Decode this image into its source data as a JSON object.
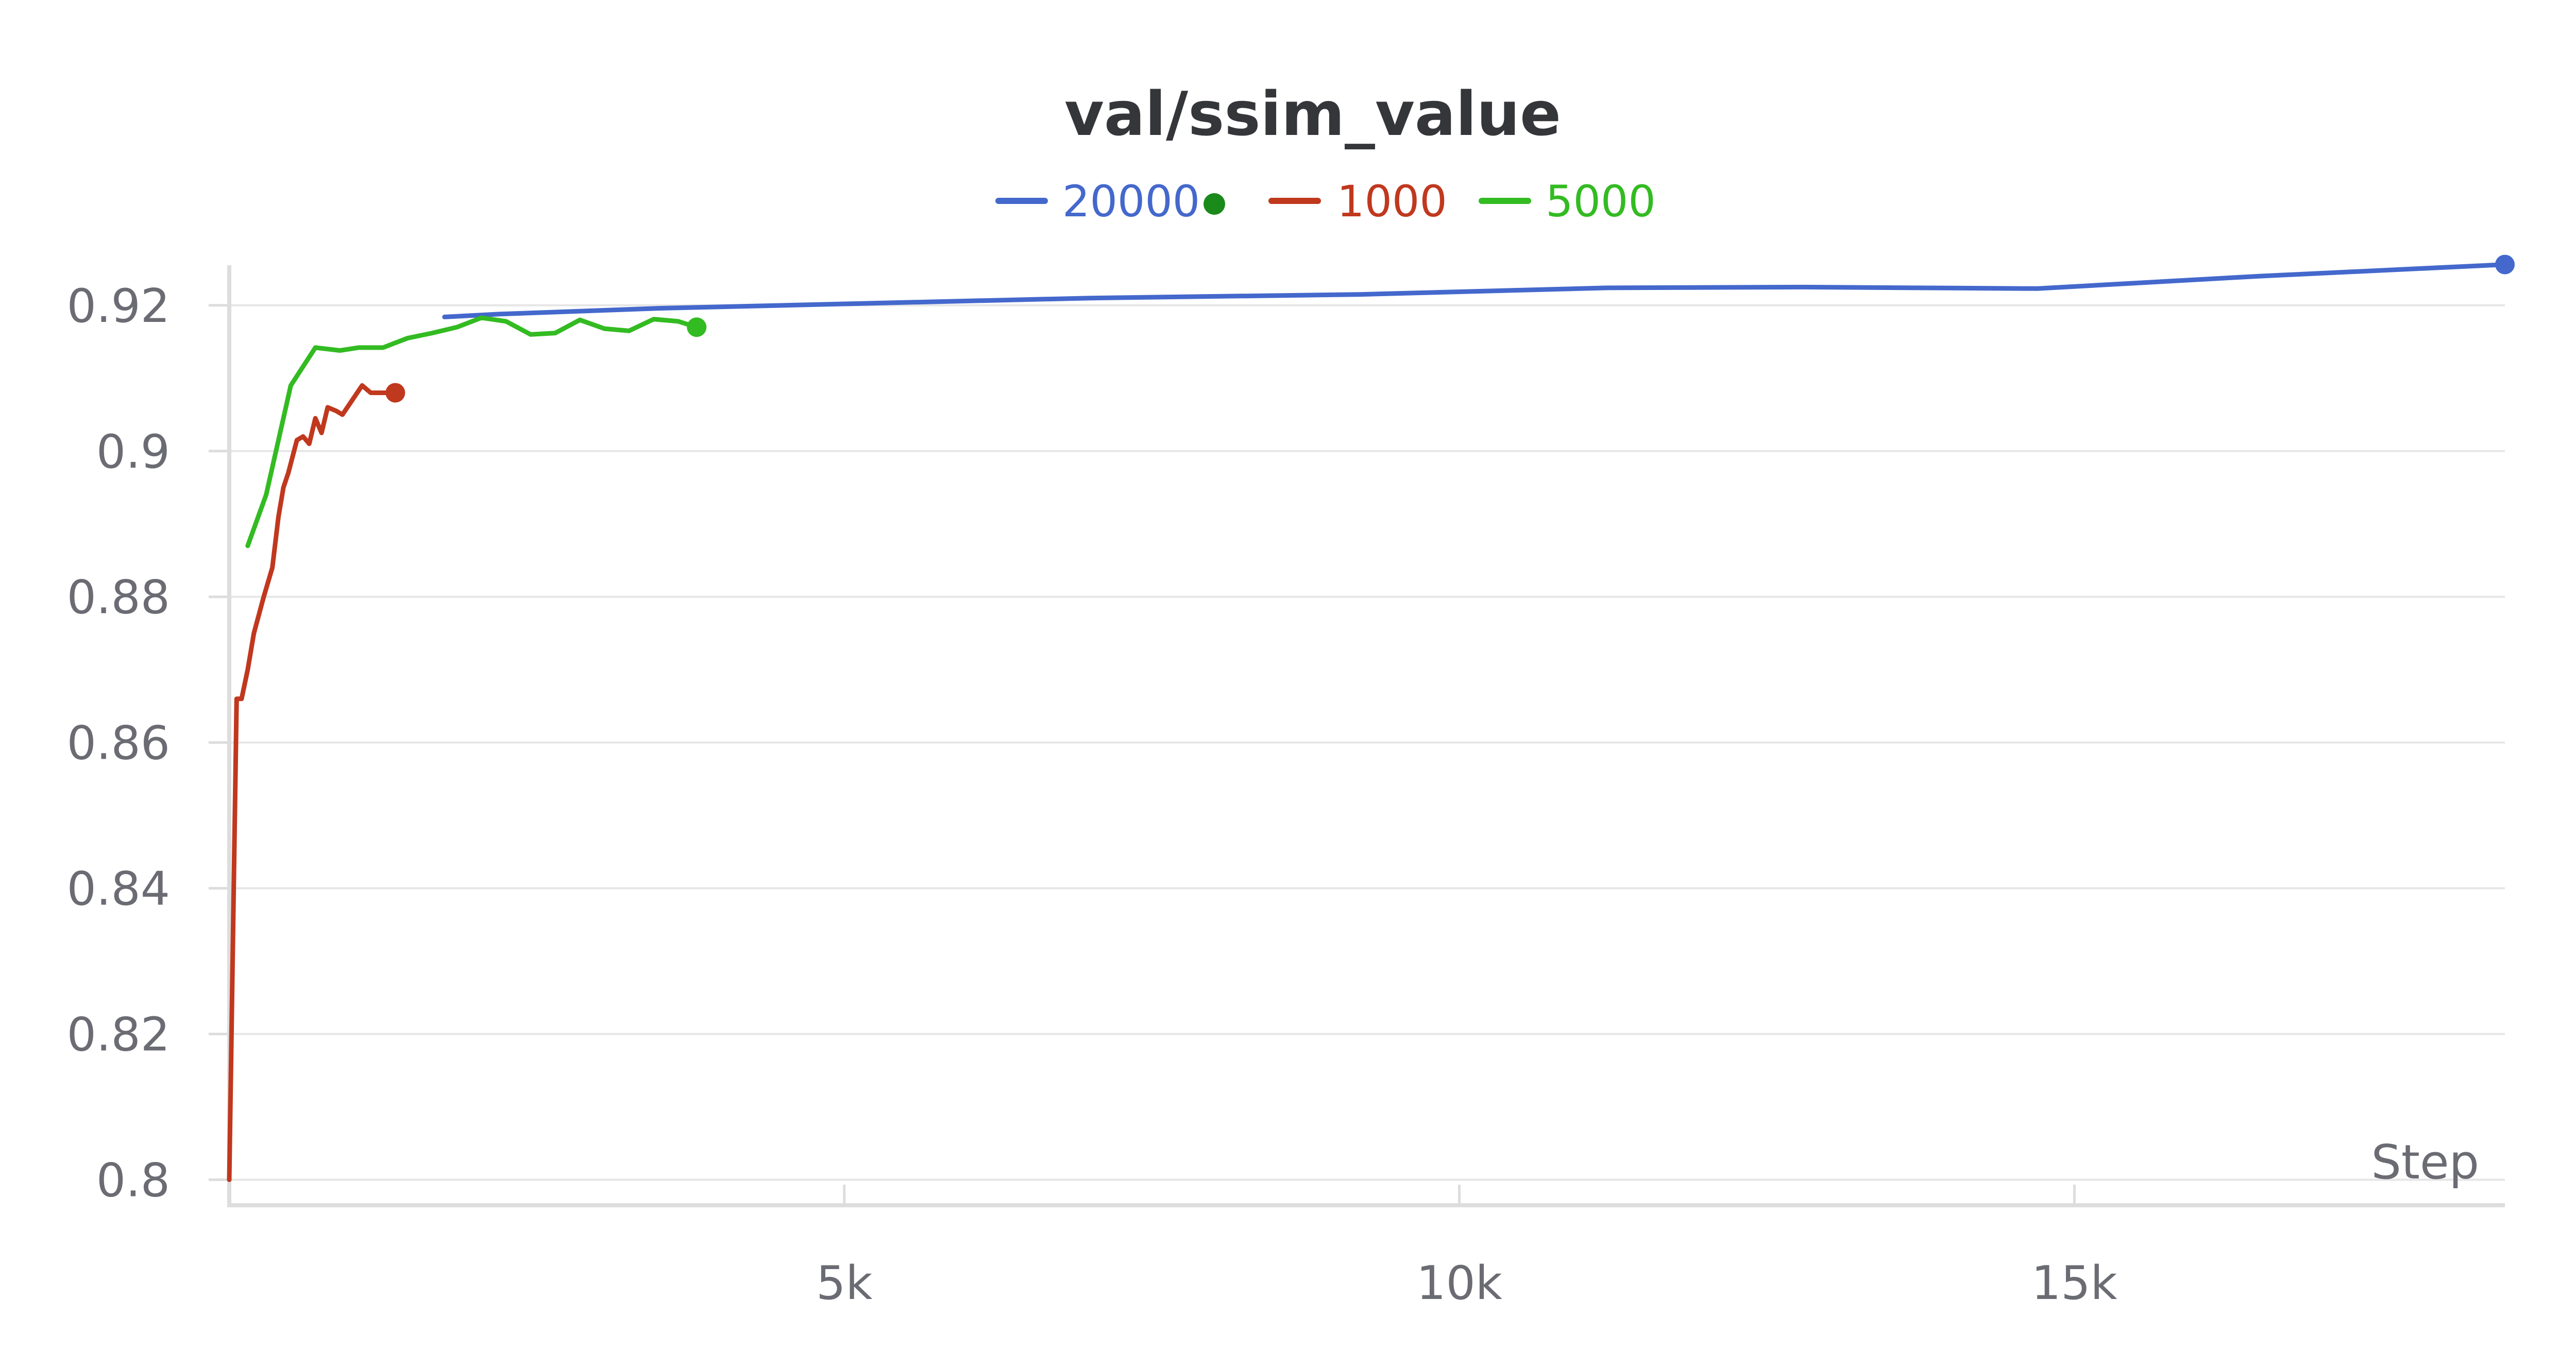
{
  "chart_data": {
    "type": "line",
    "title": "val/ssim_value",
    "xlabel": "Step",
    "ylabel": "",
    "xlim": [
      0,
      18500
    ],
    "ylim": [
      0.7965,
      0.9255
    ],
    "xticks": [
      5000,
      10000,
      15000
    ],
    "xtick_labels": [
      "5k",
      "10k",
      "15k"
    ],
    "yticks": [
      0.8,
      0.82,
      0.84,
      0.86,
      0.88,
      0.9,
      0.92
    ],
    "ytick_labels": [
      "0.8",
      "0.82",
      "0.84",
      "0.86",
      "0.88",
      "0.9",
      "0.92"
    ],
    "grid": true,
    "legend_placement": "top-center",
    "series": [
      {
        "name": "20000",
        "color": "#4468cc",
        "marker_color": "#1a8a1a",
        "x": [
          1750,
          2200,
          3500,
          5000,
          7000,
          9200,
          11200,
          12800,
          14700,
          16500,
          18500
        ],
        "y": [
          0.9184,
          0.9188,
          0.9196,
          0.9202,
          0.921,
          0.9215,
          0.9224,
          0.9225,
          0.9223,
          0.924,
          0.9256
        ]
      },
      {
        "name": "1000",
        "color": "#c0381e",
        "x": [
          0,
          60,
          100,
          150,
          200,
          280,
          350,
          400,
          440,
          480,
          550,
          600,
          650,
          700,
          750,
          800,
          870,
          920,
          1000,
          1080,
          1150,
          1250,
          1350
        ],
        "y": [
          0.8,
          0.866,
          0.866,
          0.87,
          0.875,
          0.88,
          0.884,
          0.891,
          0.895,
          0.897,
          0.9015,
          0.902,
          0.901,
          0.9045,
          0.9025,
          0.906,
          0.9055,
          0.905,
          0.907,
          0.909,
          0.908,
          0.908,
          0.908
        ]
      },
      {
        "name": "5000",
        "color": "#33bb22",
        "x": [
          150,
          300,
          500,
          700,
          900,
          1050,
          1250,
          1450,
          1650,
          1850,
          2050,
          2250,
          2450,
          2650,
          2850,
          3050,
          3250,
          3450,
          3650,
          3800
        ],
        "y": [
          0.887,
          0.894,
          0.909,
          0.9142,
          0.9138,
          0.9142,
          0.9142,
          0.9155,
          0.9162,
          0.917,
          0.9183,
          0.9178,
          0.916,
          0.9162,
          0.918,
          0.9168,
          0.9165,
          0.9181,
          0.9178,
          0.917
        ]
      }
    ]
  }
}
